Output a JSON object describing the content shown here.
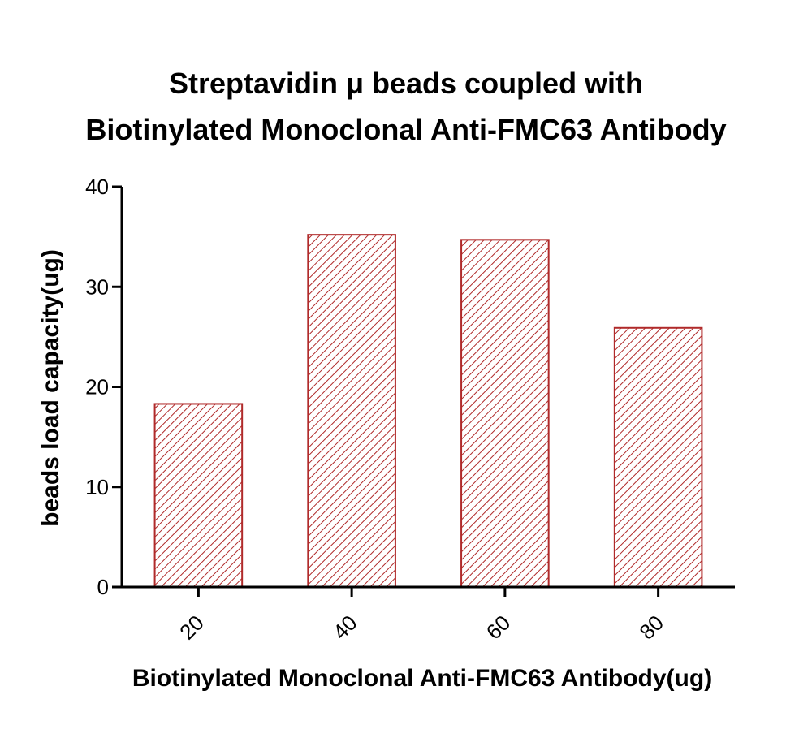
{
  "chart_data": {
    "type": "bar",
    "title": [
      "Streptavidin μ beads coupled with",
      "Biotinylated Monoclonal Anti-FMC63 Antibody"
    ],
    "xlabel": "Biotinylated Monoclonal Anti-FMC63 Antibody(ug)",
    "ylabel": "beads load capacity(ug)",
    "categories": [
      "20",
      "40",
      "60",
      "80"
    ],
    "values": [
      18.3,
      35.2,
      34.7,
      25.9
    ],
    "ylim": [
      0,
      40
    ],
    "yticks": [
      "0",
      "10",
      "20",
      "30",
      "40"
    ],
    "ytick_values": [
      0,
      10,
      20,
      30,
      40
    ],
    "grid": false,
    "legend": "none",
    "bar_fill": "hatched",
    "colors": {
      "bar_stroke": "#b02a2a",
      "hatch": "#b02a2a",
      "axis": "#000000"
    }
  }
}
